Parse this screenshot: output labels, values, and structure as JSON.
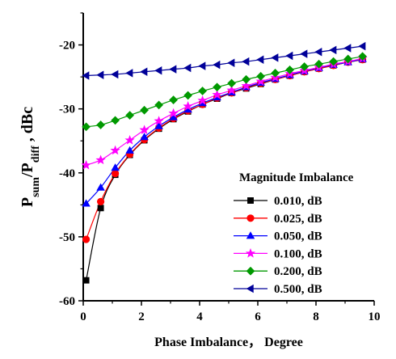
{
  "chart_data": {
    "type": "line",
    "xlabel": "Phase Imbalance，  Degree",
    "ylabel": {
      "p1": "P",
      "sub1": "sum",
      "p2": "/P",
      "sub2": "diff",
      "p3": " , dBc"
    },
    "xlim": [
      0,
      10
    ],
    "ylim": [
      -60,
      -15
    ],
    "xticks": [
      0,
      2,
      4,
      6,
      8,
      10
    ],
    "yticks": [
      -60,
      -50,
      -40,
      -30,
      -20
    ],
    "legend_title": "Magnitude Imbalance",
    "legend_position": "lower-right",
    "grid": false,
    "x": [
      0.1,
      0.6,
      1.1,
      1.6,
      2.1,
      2.6,
      3.1,
      3.6,
      4.1,
      4.6,
      5.1,
      5.6,
      6.1,
      6.6,
      7.1,
      7.6,
      8.1,
      8.6,
      9.1,
      9.6
    ],
    "series": [
      {
        "name": "0.010, dB",
        "color": "#000000",
        "marker": "square",
        "values": [
          -56.8,
          -45.5,
          -40.3,
          -37.2,
          -34.9,
          -33.1,
          -31.6,
          -30.4,
          -29.3,
          -28.4,
          -27.5,
          -26.8,
          -26.1,
          -25.4,
          -24.8,
          -24.2,
          -23.7,
          -23.2,
          -22.7,
          -22.3
        ]
      },
      {
        "name": "0.025, dB",
        "color": "#ff0000",
        "marker": "circle",
        "values": [
          -50.4,
          -44.5,
          -40.1,
          -37.1,
          -34.8,
          -33.0,
          -31.5,
          -30.3,
          -29.3,
          -28.3,
          -27.5,
          -26.7,
          -26.0,
          -25.4,
          -24.8,
          -24.2,
          -23.7,
          -23.2,
          -22.7,
          -22.3
        ]
      },
      {
        "name": "0.050, dB",
        "color": "#0000ff",
        "marker": "triangle-up",
        "values": [
          -44.8,
          -42.3,
          -39.2,
          -36.5,
          -34.4,
          -32.7,
          -31.3,
          -30.1,
          -29.1,
          -28.2,
          -27.4,
          -26.6,
          -25.9,
          -25.3,
          -24.7,
          -24.1,
          -23.6,
          -23.1,
          -22.7,
          -22.2
        ]
      },
      {
        "name": "0.100, dB",
        "color": "#ff00ff",
        "marker": "star",
        "values": [
          -38.8,
          -38.0,
          -36.5,
          -34.9,
          -33.3,
          -31.9,
          -30.7,
          -29.6,
          -28.7,
          -27.8,
          -27.1,
          -26.4,
          -25.7,
          -25.1,
          -24.5,
          -24.0,
          -23.5,
          -23.0,
          -22.6,
          -22.1
        ]
      },
      {
        "name": "0.200, dB",
        "color": "#009900",
        "marker": "diamond",
        "values": [
          -32.8,
          -32.5,
          -31.8,
          -31.0,
          -30.2,
          -29.4,
          -28.6,
          -27.9,
          -27.2,
          -26.6,
          -26.0,
          -25.4,
          -24.9,
          -24.4,
          -23.9,
          -23.4,
          -23.0,
          -22.6,
          -22.2,
          -21.8
        ]
      },
      {
        "name": "0.500, dB",
        "color": "#000099",
        "marker": "triangle-left",
        "values": [
          -24.8,
          -24.7,
          -24.6,
          -24.4,
          -24.2,
          -24.0,
          -23.8,
          -23.6,
          -23.3,
          -23.1,
          -22.8,
          -22.6,
          -22.3,
          -22.0,
          -21.7,
          -21.4,
          -21.1,
          -20.8,
          -20.5,
          -20.2
        ]
      }
    ]
  }
}
